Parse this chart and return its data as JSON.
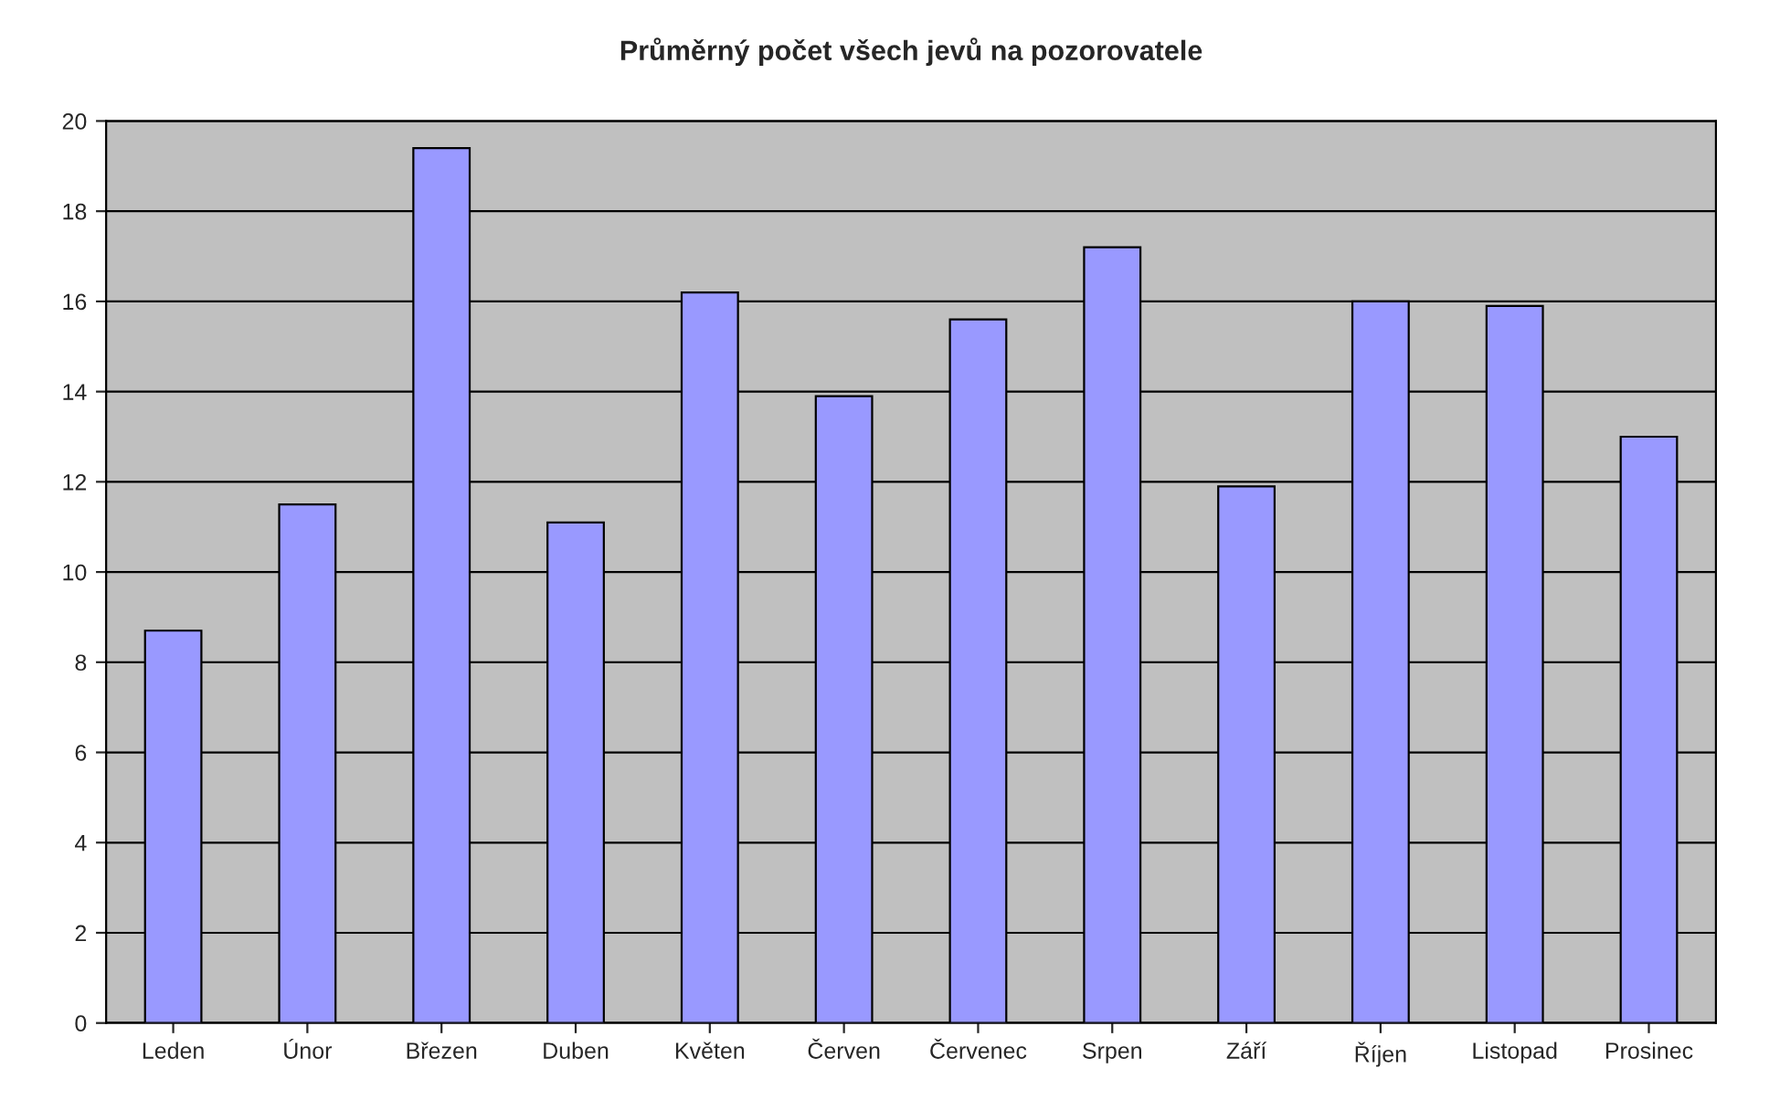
{
  "chart_data": {
    "type": "bar",
    "title": "Průměrný počet všech jevů na pozorovatele",
    "categories": [
      "Leden",
      "Únor",
      "Březen",
      "Duben",
      "Květen",
      "Červen",
      "Červenec",
      "Srpen",
      "Září",
      "Říjen",
      "Listopad",
      "Prosinec"
    ],
    "values": [
      8.7,
      11.5,
      19.4,
      11.1,
      16.2,
      13.9,
      15.6,
      17.2,
      11.9,
      16.0,
      15.9,
      13.0
    ],
    "color": "#9999ff",
    "ylim": [
      0,
      20
    ],
    "yticks": [
      0,
      2,
      4,
      6,
      8,
      10,
      12,
      14,
      16,
      18,
      20
    ],
    "grid": "y"
  }
}
